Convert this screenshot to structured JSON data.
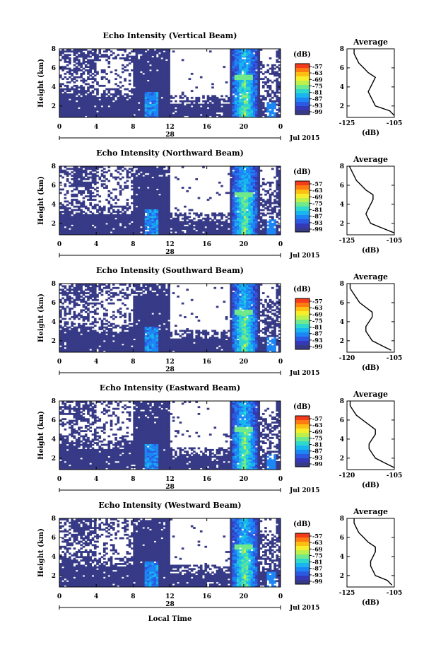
{
  "chart_data": {
    "type": "heatmap",
    "x_label": "Local Time",
    "x_ticks": [
      "0",
      "4",
      "8",
      "12",
      "16",
      "20",
      "0"
    ],
    "date_label": "28",
    "month_label": "Jul 2015",
    "y_label": "Height (km)",
    "y_ticks": [
      "2",
      "4",
      "6",
      "8"
    ],
    "ylim": [
      0.8,
      8
    ],
    "xlim": [
      0,
      24
    ],
    "colorbar": {
      "unit": "(dB)",
      "ticks": [
        "-57",
        "-63",
        "-69",
        "-75",
        "-81",
        "-87",
        "-93",
        "-99"
      ],
      "colors": [
        "#f43b1c",
        "#ff7a10",
        "#ffbf12",
        "#f6ee2a",
        "#bef04c",
        "#6fe98c",
        "#2fd8cb",
        "#18b5ef",
        "#1d86f5",
        "#2c59e1",
        "#3438b9",
        "#373a86"
      ]
    },
    "colors": {
      "low": "#373a86",
      "missing": "#ffffff",
      "line": "#000000"
    },
    "average_panel": {
      "title": "Average",
      "xlabel": "(dB)",
      "y_ticks": [
        "2",
        "4",
        "6",
        "8"
      ]
    },
    "panels": [
      {
        "title": "Echo Intensity (Vertical Beam)",
        "avg_ticks": [
          "-125",
          "-105"
        ],
        "avg_profile": [
          {
            "h": 1.0,
            "v": -105
          },
          {
            "h": 1.5,
            "v": -107
          },
          {
            "h": 2.0,
            "v": -113
          },
          {
            "h": 2.5,
            "v": -114
          },
          {
            "h": 3.0,
            "v": -115
          },
          {
            "h": 3.5,
            "v": -116
          },
          {
            "h": 4.0,
            "v": -115
          },
          {
            "h": 4.5,
            "v": -114
          },
          {
            "h": 5.0,
            "v": -113
          },
          {
            "h": 5.5,
            "v": -116
          },
          {
            "h": 6.0,
            "v": -118
          },
          {
            "h": 6.5,
            "v": -120
          },
          {
            "h": 7.0,
            "v": -121
          },
          {
            "h": 7.5,
            "v": -122
          },
          {
            "h": 8.0,
            "v": -122
          }
        ]
      },
      {
        "title": "Echo Intensity (Northward Beam)",
        "avg_ticks": [
          "-125",
          "-105"
        ],
        "avg_profile": [
          {
            "h": 1.0,
            "v": -105
          },
          {
            "h": 1.5,
            "v": -110
          },
          {
            "h": 2.0,
            "v": -115
          },
          {
            "h": 2.5,
            "v": -116
          },
          {
            "h": 3.0,
            "v": -117
          },
          {
            "h": 3.5,
            "v": -116
          },
          {
            "h": 4.0,
            "v": -115
          },
          {
            "h": 4.5,
            "v": -114
          },
          {
            "h": 5.0,
            "v": -114
          },
          {
            "h": 5.5,
            "v": -117
          },
          {
            "h": 6.0,
            "v": -119
          },
          {
            "h": 6.5,
            "v": -121
          },
          {
            "h": 7.0,
            "v": -122
          },
          {
            "h": 7.5,
            "v": -123
          },
          {
            "h": 8.0,
            "v": -124
          }
        ]
      },
      {
        "title": "Echo Intensity (Southward Beam)",
        "avg_ticks": [
          "-120",
          "-105"
        ],
        "avg_profile": [
          {
            "h": 1.0,
            "v": -106
          },
          {
            "h": 1.5,
            "v": -109
          },
          {
            "h": 2.0,
            "v": -112
          },
          {
            "h": 2.5,
            "v": -113
          },
          {
            "h": 3.0,
            "v": -114
          },
          {
            "h": 3.5,
            "v": -114
          },
          {
            "h": 4.0,
            "v": -113
          },
          {
            "h": 4.5,
            "v": -112
          },
          {
            "h": 5.0,
            "v": -112
          },
          {
            "h": 5.5,
            "v": -114
          },
          {
            "h": 6.0,
            "v": -116
          },
          {
            "h": 6.5,
            "v": -117
          },
          {
            "h": 7.0,
            "v": -118
          },
          {
            "h": 7.5,
            "v": -119
          },
          {
            "h": 8.0,
            "v": -119
          }
        ]
      },
      {
        "title": "Echo Intensity (Eastward Beam)",
        "avg_ticks": [
          "-120",
          "-105"
        ],
        "avg_profile": [
          {
            "h": 1.0,
            "v": -105
          },
          {
            "h": 1.5,
            "v": -108
          },
          {
            "h": 2.0,
            "v": -111
          },
          {
            "h": 2.5,
            "v": -112
          },
          {
            "h": 3.0,
            "v": -113
          },
          {
            "h": 3.5,
            "v": -113
          },
          {
            "h": 4.0,
            "v": -112
          },
          {
            "h": 4.5,
            "v": -111
          },
          {
            "h": 5.0,
            "v": -111
          },
          {
            "h": 5.5,
            "v": -113
          },
          {
            "h": 6.0,
            "v": -115
          },
          {
            "h": 6.5,
            "v": -117
          },
          {
            "h": 7.0,
            "v": -118
          },
          {
            "h": 7.5,
            "v": -119
          },
          {
            "h": 8.0,
            "v": -119
          }
        ]
      },
      {
        "title": "Echo Intensity (Westward Beam)",
        "avg_ticks": [
          "-125",
          "-105"
        ],
        "avg_profile": [
          {
            "h": 1.0,
            "v": -106
          },
          {
            "h": 1.5,
            "v": -108
          },
          {
            "h": 2.0,
            "v": -113
          },
          {
            "h": 2.5,
            "v": -114
          },
          {
            "h": 3.0,
            "v": -115
          },
          {
            "h": 3.5,
            "v": -115
          },
          {
            "h": 4.0,
            "v": -114
          },
          {
            "h": 4.5,
            "v": -113
          },
          {
            "h": 5.0,
            "v": -113
          },
          {
            "h": 5.5,
            "v": -116
          },
          {
            "h": 6.0,
            "v": -118
          },
          {
            "h": 6.5,
            "v": -120
          },
          {
            "h": 7.0,
            "v": -121
          },
          {
            "h": 7.5,
            "v": -122
          },
          {
            "h": 8.0,
            "v": -122
          }
        ]
      }
    ]
  }
}
